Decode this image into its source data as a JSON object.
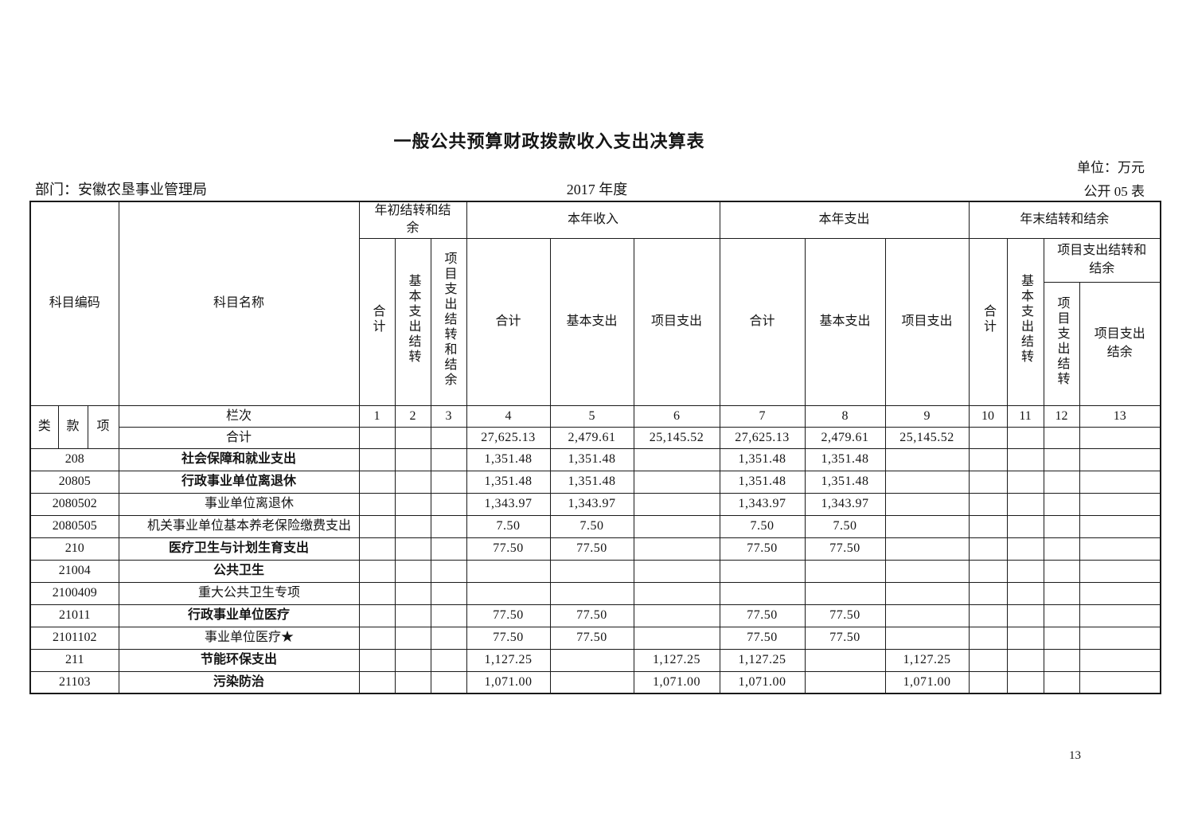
{
  "page": {
    "title": "一般公共预算财政拨款收入支出决算表",
    "unit_label": "单位：万元",
    "department_label": "部门：安徽农垦事业管理局",
    "year_label": "2017 年度",
    "public_table_label": "公开 05 表",
    "page_number": "13"
  },
  "header": {
    "subject_code": "科目编码",
    "subject_name": "科目名称",
    "group_begin_balance": "年初结转和结余",
    "group_income": "本年收入",
    "group_expense": "本年支出",
    "group_end_balance": "年末结转和结余",
    "col_total": "合计",
    "col_basic_carryover": "基本支出结转",
    "col_project_carryover_balance": "项目支出结转和结余",
    "col_basic_expense": "基本支出",
    "col_project_expense": "项目支出",
    "col_project_carryover": "项目支出结转",
    "col_project_balance": "项目支出结余",
    "class_label": "类",
    "section_label": "款",
    "item_label": "项",
    "lanci_label": "栏次",
    "col_numbers": [
      "1",
      "2",
      "3",
      "4",
      "5",
      "6",
      "7",
      "8",
      "9",
      "10",
      "11",
      "12",
      "13"
    ]
  },
  "table": {
    "total_row": {
      "label": "合计",
      "values": [
        "",
        "",
        "",
        "27,625.13",
        "2,479.61",
        "25,145.52",
        "27,625.13",
        "2,479.61",
        "25,145.52",
        "",
        "",
        "",
        ""
      ]
    },
    "rows": [
      {
        "code": "208",
        "name": "社会保障和就业支出",
        "level": "bs",
        "values": [
          "",
          "",
          "",
          "1,351.48",
          "1,351.48",
          "",
          "1,351.48",
          "1,351.48",
          "",
          "",
          "",
          "",
          ""
        ]
      },
      {
        "code": "20805",
        "name": "行政事业单位离退休",
        "level": "bs",
        "values": [
          "",
          "",
          "",
          "1,351.48",
          "1,351.48",
          "",
          "1,351.48",
          "1,351.48",
          "",
          "",
          "",
          "",
          ""
        ]
      },
      {
        "code": "2080502",
        "name": "事业单位离退休",
        "level": "i",
        "values": [
          "",
          "",
          "",
          "1,343.97",
          "1,343.97",
          "",
          "1,343.97",
          "1,343.97",
          "",
          "",
          "",
          "",
          ""
        ]
      },
      {
        "code": "2080505",
        "name": "机关事业单位基本养老保险缴费支出",
        "level": "i",
        "values": [
          "",
          "",
          "",
          "7.50",
          "7.50",
          "",
          "7.50",
          "7.50",
          "",
          "",
          "",
          "",
          ""
        ]
      },
      {
        "code": "210",
        "name": "医疗卫生与计划生育支出",
        "level": "b",
        "values": [
          "",
          "",
          "",
          "77.50",
          "77.50",
          "",
          "77.50",
          "77.50",
          "",
          "",
          "",
          "",
          ""
        ]
      },
      {
        "code": "21004",
        "name": "公共卫生",
        "level": "b",
        "values": [
          "",
          "",
          "",
          "",
          "",
          "",
          "",
          "",
          "",
          "",
          "",
          "",
          ""
        ]
      },
      {
        "code": "2100409",
        "name": "重大公共卫生专项",
        "level": "i",
        "values": [
          "",
          "",
          "",
          "",
          "",
          "",
          "",
          "",
          "",
          "",
          "",
          "",
          ""
        ]
      },
      {
        "code": "21011",
        "name": "行政事业单位医疗",
        "level": "b",
        "values": [
          "",
          "",
          "",
          "77.50",
          "77.50",
          "",
          "77.50",
          "77.50",
          "",
          "",
          "",
          "",
          ""
        ]
      },
      {
        "code": "2101102",
        "name": "事业单位医疗★",
        "level": "i",
        "values": [
          "",
          "",
          "",
          "77.50",
          "77.50",
          "",
          "77.50",
          "77.50",
          "",
          "",
          "",
          "",
          ""
        ]
      },
      {
        "code": "211",
        "name": "节能环保支出",
        "level": "b",
        "values": [
          "",
          "",
          "",
          "1,127.25",
          "",
          "1,127.25",
          "1,127.25",
          "",
          "1,127.25",
          "",
          "",
          "",
          ""
        ]
      },
      {
        "code": "21103",
        "name": "污染防治",
        "level": "b",
        "values": [
          "",
          "",
          "",
          "1,071.00",
          "",
          "1,071.00",
          "1,071.00",
          "",
          "1,071.00",
          "",
          "",
          "",
          ""
        ]
      }
    ]
  }
}
